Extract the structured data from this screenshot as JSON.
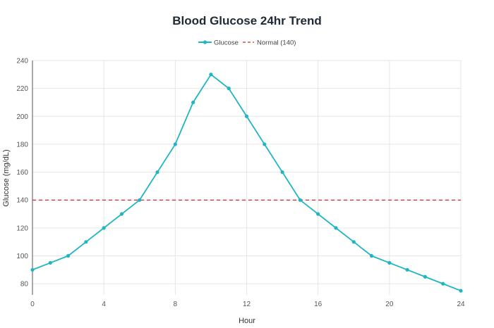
{
  "chart_data": {
    "type": "line",
    "title": "Blood Glucose 24hr Trend",
    "xlabel": "Hour",
    "ylabel": "Glucose (mg/dL)",
    "xlim": [
      0,
      24
    ],
    "ylim": [
      72,
      240
    ],
    "xticks": [
      0,
      4,
      8,
      12,
      16,
      20,
      24
    ],
    "yticks": [
      80,
      100,
      120,
      140,
      160,
      180,
      200,
      220,
      240
    ],
    "grid": true,
    "legend_position": "top-center",
    "series": [
      {
        "name": "Glucose",
        "color": "#1fb5c2",
        "x": [
          0,
          1,
          2,
          3,
          4,
          5,
          6,
          7,
          8,
          9,
          10,
          11,
          12,
          13,
          14,
          15,
          16,
          17,
          18,
          19,
          20,
          21,
          22,
          23,
          24
        ],
        "y": [
          90,
          95,
          100,
          110,
          120,
          130,
          140,
          160,
          180,
          210,
          230,
          220,
          200,
          180,
          160,
          140,
          130,
          120,
          110,
          100,
          95,
          90,
          85,
          80,
          75
        ]
      }
    ],
    "reference_lines": [
      {
        "name": "Normal (140)",
        "y": 140,
        "color": "#d62728",
        "style": "dashed"
      }
    ]
  }
}
